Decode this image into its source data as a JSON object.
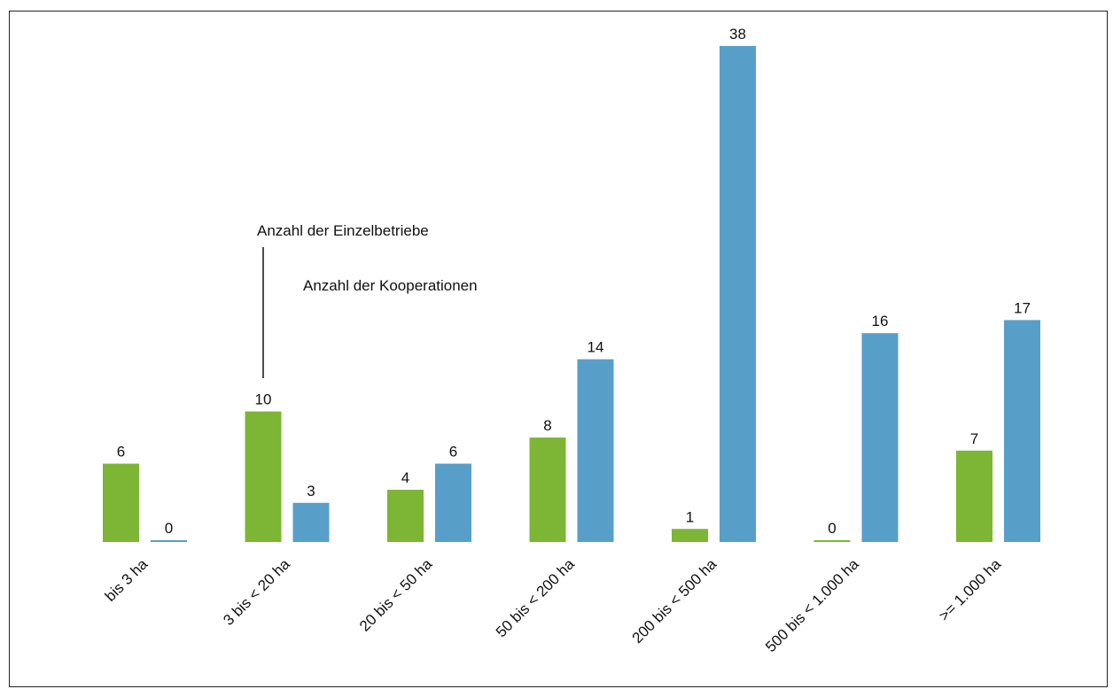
{
  "chart_data": {
    "type": "bar",
    "categories": [
      "bis 3 ha",
      "3 bis < 20 ha",
      "20 bis < 50 ha",
      "50 bis < 200 ha",
      "200 bis < 500 ha",
      "500 bis < 1.000 ha",
      ">= 1.000 ha"
    ],
    "series": [
      {
        "values": [
          6,
          10,
          4,
          8,
          1,
          0,
          7
        ],
        "color": "#7db534"
      },
      {
        "values": [
          0,
          3,
          6,
          14,
          38,
          16,
          17
        ],
        "color": "#579fc9"
      }
    ],
    "annotations": [
      "Anzahl der Einzelbetriebe",
      "Anzahl der Kooperationen"
    ],
    "grid": false,
    "legend": "none"
  }
}
